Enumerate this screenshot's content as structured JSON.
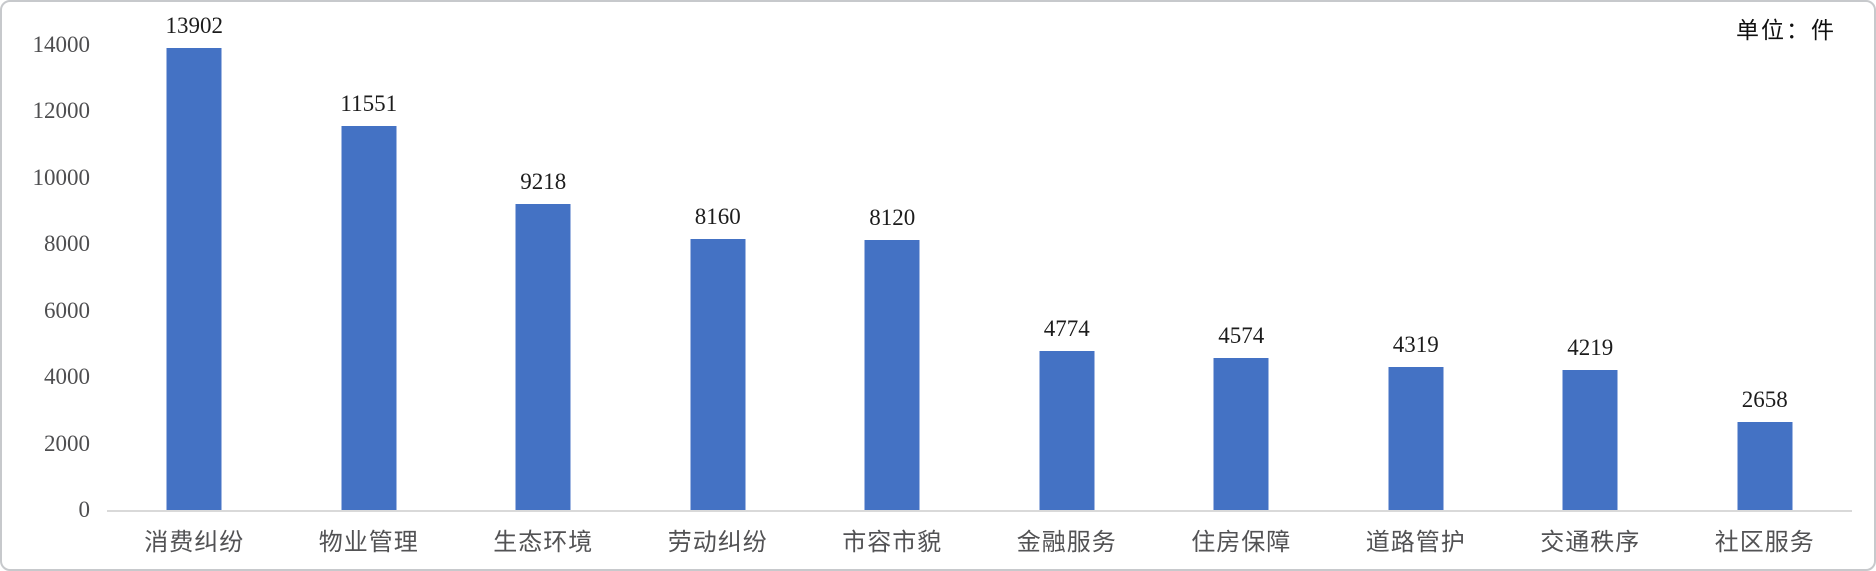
{
  "chart_data": {
    "type": "bar",
    "title": "",
    "unit_label": "单位：件",
    "categories": [
      "消费纠纷",
      "物业管理",
      "生态环境",
      "劳动纠纷",
      "市容市貌",
      "金融服务",
      "住房保障",
      "道路管护",
      "交通秩序",
      "社区服务"
    ],
    "values": [
      13902,
      11551,
      9218,
      8160,
      8120,
      4774,
      4574,
      4319,
      4219,
      2658
    ],
    "xlabel": "",
    "ylabel": "",
    "ylim": [
      0,
      14000
    ],
    "yticks": [
      0,
      2000,
      4000,
      6000,
      8000,
      10000,
      12000,
      14000
    ],
    "grid": false,
    "legend_position": "none",
    "value_labels_shown": true,
    "bar_color": "#4472C4",
    "axis_line_color": "#D9D9D9",
    "tick_label_color": "#4E4E50",
    "value_label_color": "#1C1C1C",
    "category_label_color": "#525254",
    "background_color": "#FFFFFF"
  }
}
